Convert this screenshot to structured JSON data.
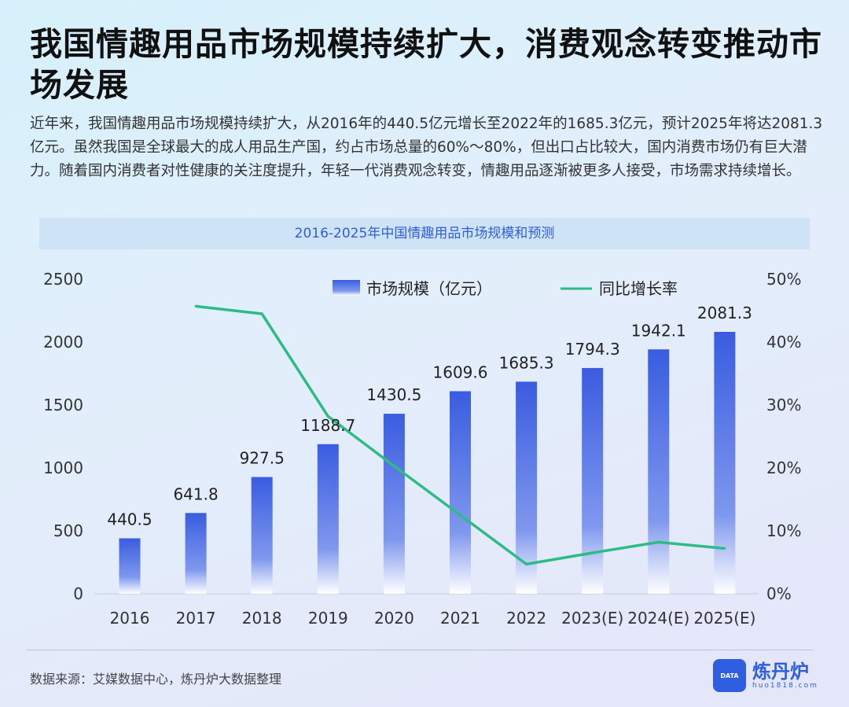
{
  "header": {
    "title": "我国情趣用品市场规模持续扩大，消费观念转变推动市场发展",
    "intro": "近年来，我国情趣用品市场规模持续扩大，从2016年的440.5亿元增长至2022年的1685.3亿元，预计2025年将达2081.3亿元。虽然我国是全球最大的成人用品生产国，约占市场总量的60%～80%，但出口占比较大，国内消费市场仍有巨大潜力。随着国内消费者对性健康的关注度提升，年轻一代消费观念转变，情趣用品逐渐被更多人接受，市场需求持续增长。"
  },
  "chart_data": {
    "type": "bar",
    "title": "2016-2025年中国情趣用品市场规模和预测",
    "categories": [
      "2016",
      "2017",
      "2018",
      "2019",
      "2020",
      "2021",
      "2022",
      "2023(E)",
      "2024(E)",
      "2025(E)"
    ],
    "series": [
      {
        "name": "市场规模（亿元）",
        "type": "bar",
        "axis": "left",
        "values": [
          440.5,
          641.8,
          927.5,
          1188.7,
          1430.5,
          1609.6,
          1685.3,
          1794.3,
          1942.1,
          2081.3
        ],
        "labels": [
          "440.5",
          "641.8",
          "927.5",
          "1188.7",
          "1430.5",
          "1609.6",
          "1685.3",
          "1794.3",
          "1942.1",
          "2081.3"
        ]
      },
      {
        "name": "同比增长率",
        "type": "line",
        "axis": "right",
        "values": [
          null,
          45.7,
          44.5,
          28.2,
          20.3,
          12.5,
          4.7,
          6.5,
          8.2,
          7.2
        ]
      }
    ],
    "left_axis": {
      "ylim": [
        0,
        2500
      ],
      "ticks": [
        "0",
        "500",
        "1000",
        "1500",
        "2000",
        "2500"
      ]
    },
    "right_axis": {
      "ylim": [
        0,
        50
      ],
      "ticks": [
        "0%",
        "10%",
        "20%",
        "30%",
        "40%",
        "50%"
      ]
    },
    "legend_position": "top",
    "grid": false,
    "colors": {
      "bar_top": "#3a5ce0",
      "bar_bottom": "#ffffff",
      "line": "#2dbb86"
    }
  },
  "footer": {
    "source": "数据来源：艾媒数据中心，炼丹炉大数据整理",
    "logo_name": "炼丹炉",
    "logo_badge": "DATA",
    "logo_url": "huo1818.com"
  }
}
